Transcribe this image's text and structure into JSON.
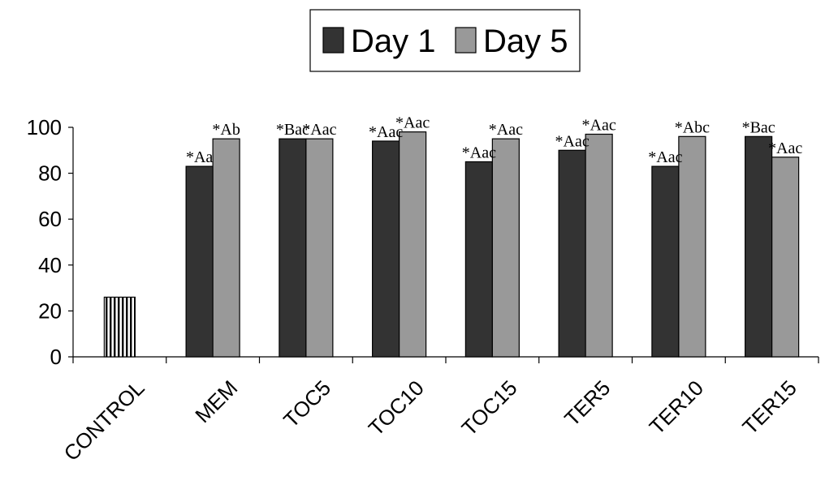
{
  "chart_data": {
    "type": "bar",
    "categories": [
      "CONTROL",
      "MEM",
      "TOC5",
      "TOC10",
      "TOC15",
      "TER5",
      "TER10",
      "TER15"
    ],
    "control": {
      "value": 26
    },
    "series": [
      {
        "name": "Day 1",
        "color": "#333333",
        "values": [
          null,
          83,
          95,
          94,
          85,
          90,
          83,
          96
        ],
        "labels": [
          null,
          "*Aa",
          "*Bac",
          "*Aac",
          "*Aac",
          "*Aac",
          "*Aac",
          "*Bac"
        ]
      },
      {
        "name": "Day 5",
        "color": "#999999",
        "values": [
          null,
          95,
          95,
          98,
          95,
          97,
          96,
          87
        ],
        "labels": [
          null,
          "*Ab",
          "*Aac",
          "*Aac",
          "*Aac",
          "*Aac",
          "*Abc",
          "*Aac"
        ]
      }
    ],
    "yticks": [
      0,
      20,
      40,
      60,
      80,
      100
    ],
    "ylim": [
      0,
      100
    ],
    "legend_position": "top-center",
    "grid": false
  }
}
